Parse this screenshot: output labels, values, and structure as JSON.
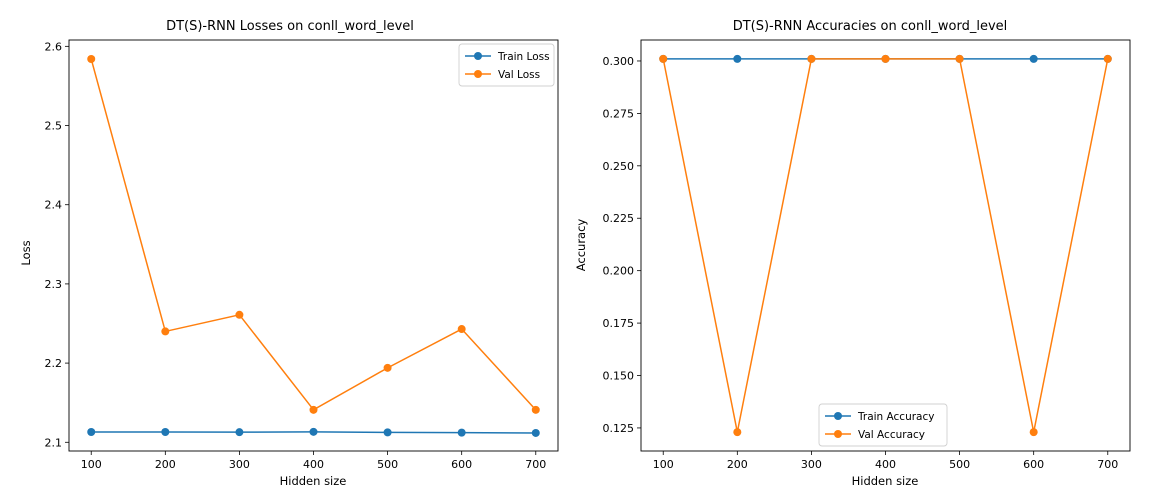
{
  "chart_data": [
    {
      "type": "line",
      "title": "DT(S)-RNN Losses on conll_word_level",
      "xlabel": "Hidden size",
      "ylabel": "Loss",
      "x": [
        100,
        200,
        300,
        400,
        500,
        600,
        700
      ],
      "xticks": [
        100,
        200,
        300,
        400,
        500,
        600,
        700
      ],
      "xlim": [
        70,
        730
      ],
      "yticks": [
        2.1,
        2.2,
        2.3,
        2.4,
        2.5,
        2.6
      ],
      "ytick_labels": [
        "2.1",
        "2.2",
        "2.3",
        "2.4",
        "2.5",
        "2.6"
      ],
      "ylim": [
        2.089,
        2.608
      ],
      "grid": false,
      "legend": "top-right",
      "series": [
        {
          "name": "Train Loss",
          "color": "#1f77b4",
          "values": [
            2.113,
            2.113,
            2.1128,
            2.1132,
            2.1125,
            2.1122,
            2.1118
          ]
        },
        {
          "name": "Val Loss",
          "color": "#ff7f0e",
          "values": [
            2.584,
            2.24,
            2.261,
            2.141,
            2.194,
            2.243,
            2.141
          ]
        }
      ]
    },
    {
      "type": "line",
      "title": "DT(S)-RNN Accuracies on conll_word_level",
      "xlabel": "Hidden size",
      "ylabel": "Accuracy",
      "x": [
        100,
        200,
        300,
        400,
        500,
        600,
        700
      ],
      "xticks": [
        100,
        200,
        300,
        400,
        500,
        600,
        700
      ],
      "xlim": [
        70,
        730
      ],
      "yticks": [
        0.125,
        0.15,
        0.175,
        0.2,
        0.225,
        0.25,
        0.275,
        0.3
      ],
      "ytick_labels": [
        "0.125",
        "0.150",
        "0.175",
        "0.200",
        "0.225",
        "0.250",
        "0.275",
        "0.300"
      ],
      "ylim": [
        0.114,
        0.31
      ],
      "grid": false,
      "legend": "lower-center",
      "series": [
        {
          "name": "Train Accuracy",
          "color": "#1f77b4",
          "values": [
            0.301,
            0.301,
            0.301,
            0.301,
            0.301,
            0.301,
            0.301
          ]
        },
        {
          "name": "Val Accuracy",
          "color": "#ff7f0e",
          "values": [
            0.301,
            0.123,
            0.301,
            0.301,
            0.301,
            0.123,
            0.301
          ]
        }
      ]
    }
  ]
}
